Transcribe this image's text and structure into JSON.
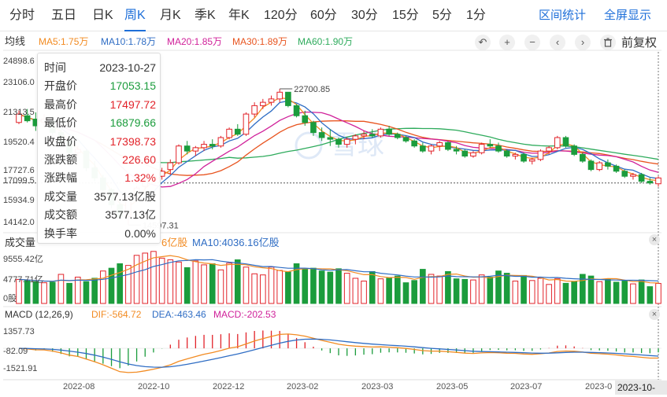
{
  "tabs": [
    {
      "label": "分时",
      "active": false
    },
    {
      "label": "五日",
      "active": false
    },
    {
      "label": "日K",
      "active": false
    },
    {
      "label": "周K",
      "active": true
    },
    {
      "label": "月K",
      "active": false
    },
    {
      "label": "季K",
      "active": false
    },
    {
      "label": "年K",
      "active": false
    },
    {
      "label": "120分",
      "active": false
    },
    {
      "label": "60分",
      "active": false
    },
    {
      "label": "30分",
      "active": false
    },
    {
      "label": "15分",
      "active": false
    },
    {
      "label": "5分",
      "active": false
    },
    {
      "label": "1分",
      "active": false
    }
  ],
  "actions": {
    "range_stats": "区间统计",
    "fullscreen": "全屏显示"
  },
  "ma": {
    "label": "均线",
    "ma5": "MA5:1.75万",
    "ma10": "MA10:1.78万",
    "ma20": "MA20:1.85万",
    "ma30": "MA30:1.89万",
    "ma60": "MA60:1.90万",
    "colors": {
      "ma5": "#f28b22",
      "ma10": "#2f6dc4",
      "ma20": "#d0219a",
      "ma30": "#e8541f",
      "ma60": "#2eab5c"
    }
  },
  "toolbar": {
    "icons": [
      "undo-icon",
      "zoom-in-icon",
      "zoom-out-icon",
      "prev-icon",
      "next-icon",
      "delete-icon"
    ],
    "fuquan": "前复权"
  },
  "price_axis": [
    "24898.6",
    "23106.0",
    "21313.5",
    "19520.4",
    "17727.6",
    "17099.5",
    "15934.9",
    "14142.0"
  ],
  "annotations": {
    "high": "22700.85",
    "low": "14597.31"
  },
  "tooltip": [
    {
      "k": "时间",
      "v": "2023-10-27",
      "color": "#333333"
    },
    {
      "k": "开盘价",
      "v": "17053.15",
      "color": "#1b9c3c"
    },
    {
      "k": "最高价",
      "v": "17497.72",
      "color": "#e2232a"
    },
    {
      "k": "最低价",
      "v": "16879.66",
      "color": "#1b9c3c"
    },
    {
      "k": "收盘价",
      "v": "17398.73",
      "color": "#e2232a"
    },
    {
      "k": "涨跌额",
      "v": "226.60",
      "color": "#e2232a"
    },
    {
      "k": "涨跌幅",
      "v": "1.32%",
      "color": "#e2232a"
    },
    {
      "k": "成交量",
      "v": "3577.13亿股",
      "color": "#333333"
    },
    {
      "k": "成交额",
      "v": "3577.13亿",
      "color": "#333333"
    },
    {
      "k": "换手率",
      "v": "0.00%",
      "color": "#333333"
    }
  ],
  "volume": {
    "label": "成交量",
    "ma5_fragment": "6亿股",
    "ma10": "MA10:4036.16亿股",
    "axis": [
      "9555.42亿",
      "4777.71亿",
      "0股"
    ]
  },
  "macd": {
    "label": "MACD (12,26,9)",
    "dif": "DIF:-564.72",
    "dea": "DEA:-463.46",
    "macd": "MACD:-202.53",
    "axis": [
      "1357.73",
      "-82.09",
      "-1521.91"
    ]
  },
  "x_axis": [
    "2022-08",
    "2022-10",
    "2022-12",
    "2023-02",
    "2023-03",
    "2023-05",
    "2023-07",
    "2023-0"
  ],
  "current_date": "2023-10-27",
  "watermark": "雪球",
  "chart_data": {
    "type": "candlestick",
    "up_color": "#e2232a",
    "down_color": "#1b9c3c",
    "candles": [
      [
        20700,
        21400,
        20600,
        21200
      ],
      [
        21100,
        21500,
        20700,
        20800
      ],
      [
        20900,
        21300,
        20200,
        20500
      ],
      [
        20700,
        21200,
        20400,
        20900
      ],
      [
        20800,
        21100,
        19900,
        20100
      ],
      [
        20100,
        20300,
        19200,
        19500
      ],
      [
        19600,
        19900,
        18700,
        18900
      ],
      [
        18900,
        19300,
        18600,
        19100
      ],
      [
        19000,
        19100,
        17800,
        18000
      ],
      [
        18000,
        18400,
        17200,
        17400
      ],
      [
        17400,
        17600,
        16400,
        16700
      ],
      [
        16700,
        16800,
        15600,
        15800
      ],
      [
        15800,
        16100,
        14900,
        15100
      ],
      [
        15100,
        16300,
        14597.31,
        16200
      ],
      [
        16200,
        16900,
        16000,
        16800
      ],
      [
        16900,
        17500,
        16700,
        17300
      ],
      [
        17300,
        17600,
        17100,
        17500
      ],
      [
        17500,
        18000,
        17300,
        17800
      ],
      [
        17900,
        18500,
        17600,
        18300
      ],
      [
        18300,
        19400,
        18200,
        19300
      ],
      [
        19300,
        19600,
        18800,
        19000
      ],
      [
        19000,
        19300,
        18700,
        19200
      ],
      [
        19200,
        19600,
        19000,
        19400
      ],
      [
        19400,
        19700,
        19100,
        19300
      ],
      [
        19300,
        19900,
        19200,
        19800
      ],
      [
        19800,
        20400,
        19700,
        20300
      ],
      [
        20300,
        20600,
        19900,
        20000
      ],
      [
        20000,
        21300,
        19900,
        21200
      ],
      [
        21200,
        21900,
        21000,
        21700
      ],
      [
        21700,
        22100,
        21500,
        21900
      ],
      [
        21900,
        22300,
        21700,
        22100
      ],
      [
        22100,
        22700.85,
        21900,
        22500
      ],
      [
        22500,
        22500,
        21600,
        21700
      ],
      [
        21700,
        21800,
        21000,
        21100
      ],
      [
        21100,
        21400,
        20500,
        20700
      ],
      [
        20700,
        20800,
        19900,
        20100
      ],
      [
        20100,
        20400,
        19600,
        19800
      ],
      [
        19800,
        20300,
        19300,
        19700
      ],
      [
        19700,
        19800,
        19200,
        19400
      ],
      [
        19400,
        19800,
        19200,
        19700
      ],
      [
        19700,
        20000,
        19400,
        19900
      ],
      [
        19900,
        20200,
        19700,
        20000
      ],
      [
        20000,
        20300,
        19800,
        19900
      ],
      [
        19900,
        20400,
        19800,
        20300
      ],
      [
        20300,
        20500,
        19900,
        20000
      ],
      [
        20000,
        20100,
        19700,
        19800
      ],
      [
        19800,
        19900,
        19500,
        19600
      ],
      [
        19600,
        19700,
        19200,
        19300
      ],
      [
        19300,
        19500,
        18900,
        19000
      ],
      [
        19000,
        19400,
        18800,
        19300
      ],
      [
        19300,
        19600,
        19000,
        19500
      ],
      [
        19500,
        19600,
        19000,
        19100
      ],
      [
        19100,
        19300,
        18800,
        19000
      ],
      [
        19000,
        19100,
        18600,
        18700
      ],
      [
        18700,
        19000,
        18600,
        18900
      ],
      [
        18900,
        19500,
        18800,
        19400
      ],
      [
        19400,
        19700,
        19200,
        19300
      ],
      [
        19300,
        19500,
        18900,
        19000
      ],
      [
        19000,
        19100,
        18600,
        18700
      ],
      [
        18700,
        18900,
        18500,
        18800
      ],
      [
        18800,
        18900,
        18300,
        18400
      ],
      [
        18400,
        18600,
        18200,
        18500
      ],
      [
        18500,
        19100,
        18400,
        19000
      ],
      [
        19000,
        19300,
        18800,
        19200
      ],
      [
        19200,
        19900,
        19100,
        19800
      ],
      [
        19800,
        19900,
        19200,
        19300
      ],
      [
        19300,
        19400,
        18700,
        18800
      ],
      [
        18800,
        18900,
        18300,
        18400
      ],
      [
        18400,
        18500,
        17800,
        17900
      ],
      [
        17900,
        18400,
        17800,
        18300
      ],
      [
        18300,
        18500,
        17900,
        18100
      ],
      [
        18100,
        18200,
        17700,
        17800
      ],
      [
        17800,
        17900,
        17400,
        17500
      ],
      [
        17500,
        17700,
        17300,
        17600
      ],
      [
        17600,
        17700,
        17100,
        17200
      ],
      [
        17200,
        17400,
        17000,
        17100
      ],
      [
        17053.15,
        17497.72,
        16879.66,
        17398.73
      ]
    ],
    "volume_values": [
      4300,
      4100,
      3900,
      3700,
      3800,
      5200,
      3600,
      4700,
      3900,
      4500,
      5800,
      6300,
      7100,
      6800,
      8600,
      9000,
      9300,
      8100,
      7800,
      7400,
      6400,
      7600,
      6900,
      7100,
      6000,
      7200,
      7800,
      6500,
      5300,
      5100,
      6500,
      5900,
      5600,
      7100,
      6100,
      6300,
      5800,
      5600,
      6200,
      5400,
      4500,
      4000,
      5700,
      4400,
      4500,
      4900,
      3700,
      4100,
      6100,
      5200,
      4900,
      5700,
      4400,
      4300,
      4200,
      5100,
      4700,
      5800,
      5400,
      4000,
      5000,
      4100,
      4500,
      3400,
      4400,
      3600,
      3900,
      5200,
      4900,
      3900,
      4300,
      3800,
      4000,
      3500,
      4200,
      3000,
      3577.13
    ],
    "volume_up": [
      1,
      0,
      0,
      1,
      0,
      1,
      0,
      1,
      0,
      0,
      1,
      0,
      0,
      1,
      1,
      1,
      1,
      1,
      1,
      1,
      0,
      1,
      1,
      0,
      1,
      1,
      0,
      1,
      1,
      1,
      1,
      1,
      0,
      0,
      0,
      0,
      0,
      0,
      0,
      1,
      1,
      1,
      0,
      1,
      0,
      0,
      0,
      0,
      0,
      1,
      1,
      0,
      0,
      0,
      1,
      1,
      0,
      0,
      0,
      1,
      0,
      1,
      1,
      1,
      1,
      0,
      0,
      0,
      0,
      1,
      0,
      0,
      0,
      1,
      0,
      0,
      1
    ],
    "volume_ylim": [
      0,
      9555.42
    ],
    "macd_ylim": [
      -1521.91,
      1357.73
    ],
    "ylim": [
      14142.0,
      24898.6
    ],
    "current_price_line": 17099.5
  }
}
